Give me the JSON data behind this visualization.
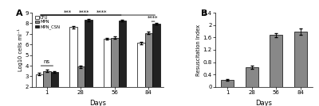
{
  "panel_A": {
    "days": [
      1,
      28,
      56,
      84
    ],
    "CFU": [
      3.2,
      7.65,
      6.55,
      6.15
    ],
    "MPN": [
      3.5,
      3.9,
      6.65,
      7.1
    ],
    "MPN_CSN": [
      3.4,
      8.3,
      8.25,
      7.95
    ],
    "CFU_err": [
      0.12,
      0.1,
      0.1,
      0.12
    ],
    "MPN_err": [
      0.1,
      0.12,
      0.1,
      0.08
    ],
    "MPN_CSN_err": [
      0.1,
      0.08,
      0.07,
      0.09
    ],
    "bar_colors": [
      "white",
      "#888888",
      "#222222"
    ],
    "bar_edgecolor": "black",
    "ylabel": "Log10 cells ml⁻¹",
    "xlabel": "Days",
    "ylim": [
      2,
      9
    ],
    "yticks": [
      2,
      3,
      4,
      5,
      6,
      7,
      8,
      9
    ],
    "panel_label": "A"
  },
  "panel_B": {
    "days": [
      1,
      28,
      56,
      84
    ],
    "values": [
      0.22,
      0.63,
      1.68,
      1.78
    ],
    "errors": [
      0.03,
      0.05,
      0.06,
      0.1
    ],
    "bar_color": "#888888",
    "bar_edgecolor": "black",
    "ylabel": "Resuscitation Index",
    "xlabel": "Days",
    "ylim": [
      0,
      2.4
    ],
    "yticks": [
      0,
      0.4,
      0.8,
      1.2,
      1.6,
      2.0,
      2.4
    ],
    "panel_label": "B"
  }
}
